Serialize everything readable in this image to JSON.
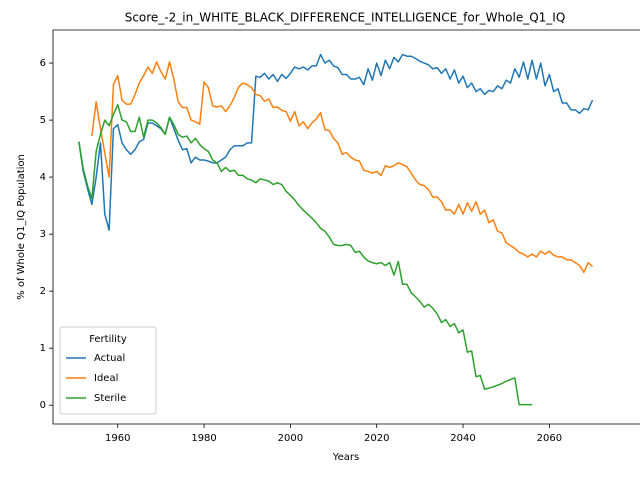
{
  "chart_data": {
    "type": "line",
    "title": "Score_-2_in_WHITE_BLACK_DIFFERENCE_INTELLIGENCE_for_Whole_Q1_IQ",
    "xlabel": "Years",
    "ylabel": "% of Whole Q1_IQ Population",
    "legend_title": "Fertility",
    "legend": "lower left",
    "xlim": [
      1945,
      2081
    ],
    "ylim": [
      -0.33,
      6.58
    ],
    "xticks": [
      1960,
      1980,
      2000,
      2020,
      2040,
      2060
    ],
    "yticks": [
      0,
      1,
      2,
      3,
      4,
      5,
      6
    ],
    "x": [
      1951,
      1952,
      1953,
      1954,
      1955,
      1956,
      1957,
      1958,
      1959,
      1960,
      1961,
      1962,
      1963,
      1964,
      1965,
      1966,
      1967,
      1968,
      1969,
      1970,
      1971,
      1972,
      1973,
      1974,
      1975,
      1976,
      1977,
      1978,
      1979,
      1980,
      1981,
      1982,
      1983,
      1984,
      1985,
      1986,
      1987,
      1988,
      1989,
      1990,
      1991,
      1992,
      1993,
      1994,
      1995,
      1996,
      1997,
      1998,
      1999,
      2000,
      2001,
      2002,
      2003,
      2004,
      2005,
      2006,
      2007,
      2008,
      2009,
      2010,
      2011,
      2012,
      2013,
      2014,
      2015,
      2016,
      2017,
      2018,
      2019,
      2020,
      2021,
      2022,
      2023,
      2024,
      2025,
      2026,
      2027,
      2028,
      2029,
      2030,
      2031,
      2032,
      2033,
      2034,
      2035,
      2036,
      2037,
      2038,
      2039,
      2040,
      2041,
      2042,
      2043,
      2044,
      2045,
      2046,
      2047,
      2048,
      2049,
      2050,
      2051,
      2052,
      2053,
      2054,
      2055,
      2056,
      2057,
      2058,
      2059,
      2060,
      2061,
      2062,
      2063,
      2064,
      2065,
      2066,
      2067,
      2068,
      2069,
      2070
    ],
    "series": [
      {
        "name": "Actual",
        "color": "#1f77b4",
        "values": [
          4.62,
          4.1,
          3.8,
          3.52,
          4.0,
          4.6,
          3.35,
          3.07,
          4.85,
          4.92,
          4.6,
          4.48,
          4.4,
          4.48,
          4.62,
          4.66,
          4.95,
          4.95,
          4.9,
          4.85,
          4.75,
          5.05,
          4.85,
          4.65,
          4.48,
          4.5,
          4.25,
          4.35,
          4.3,
          4.3,
          4.28,
          4.25,
          4.25,
          4.3,
          4.35,
          4.48,
          4.55,
          4.55,
          4.55,
          4.6,
          4.6,
          5.77,
          5.75,
          5.82,
          5.72,
          5.8,
          5.68,
          5.8,
          5.73,
          5.82,
          5.93,
          5.9,
          5.93,
          5.88,
          5.95,
          5.95,
          6.15,
          6.0,
          6.05,
          5.95,
          5.92,
          5.8,
          5.8,
          5.72,
          5.72,
          5.75,
          5.62,
          5.9,
          5.7,
          6.0,
          5.78,
          6.05,
          5.9,
          6.1,
          6.02,
          6.15,
          6.12,
          6.12,
          6.08,
          6.03,
          6.0,
          5.97,
          5.9,
          5.92,
          5.82,
          5.9,
          5.72,
          5.88,
          5.65,
          5.77,
          5.57,
          5.65,
          5.5,
          5.55,
          5.45,
          5.52,
          5.5,
          5.6,
          5.55,
          5.7,
          5.65,
          5.9,
          5.75,
          6.02,
          5.72,
          6.05,
          5.72,
          6.0,
          5.6,
          5.8,
          5.5,
          5.55,
          5.3,
          5.3,
          5.18,
          5.18,
          5.12,
          5.2,
          5.18,
          5.35
        ]
      },
      {
        "name": "Ideal",
        "color": "#ff7f0e",
        "values": [
          null,
          null,
          null,
          4.72,
          5.32,
          4.85,
          4.42,
          4.0,
          5.62,
          5.78,
          5.35,
          5.28,
          5.28,
          5.45,
          5.65,
          5.78,
          5.93,
          5.82,
          6.02,
          5.85,
          5.72,
          6.02,
          5.72,
          5.32,
          5.22,
          5.22,
          5.0,
          4.97,
          4.93,
          5.67,
          5.57,
          5.25,
          5.23,
          5.25,
          5.15,
          5.25,
          5.4,
          5.58,
          5.65,
          5.62,
          5.57,
          5.45,
          5.43,
          5.33,
          5.37,
          5.22,
          5.23,
          5.17,
          5.15,
          4.98,
          5.15,
          4.9,
          4.97,
          4.85,
          4.95,
          5.02,
          5.13,
          4.83,
          4.82,
          4.68,
          4.6,
          4.4,
          4.43,
          4.35,
          4.3,
          4.28,
          4.12,
          4.1,
          4.07,
          4.1,
          4.03,
          4.2,
          4.17,
          4.2,
          4.25,
          4.22,
          4.18,
          4.07,
          3.95,
          3.87,
          3.85,
          3.78,
          3.65,
          3.65,
          3.57,
          3.42,
          3.43,
          3.35,
          3.52,
          3.35,
          3.55,
          3.4,
          3.57,
          3.35,
          3.42,
          3.2,
          3.25,
          3.05,
          3.02,
          2.85,
          2.8,
          2.75,
          2.68,
          2.65,
          2.6,
          2.65,
          2.6,
          2.7,
          2.65,
          2.7,
          2.63,
          2.6,
          2.6,
          2.55,
          2.55,
          2.5,
          2.45,
          2.33,
          2.5,
          2.43
        ]
      },
      {
        "name": "Sterile",
        "color": "#2ca02c",
        "values": [
          4.62,
          4.15,
          3.85,
          3.62,
          4.45,
          4.75,
          5.0,
          4.9,
          5.1,
          5.27,
          5.0,
          4.97,
          4.8,
          4.8,
          5.05,
          4.7,
          5.0,
          5.0,
          4.95,
          4.87,
          4.75,
          5.05,
          4.92,
          4.75,
          4.7,
          4.72,
          4.6,
          4.68,
          4.57,
          4.5,
          4.45,
          4.3,
          4.25,
          4.1,
          4.17,
          4.1,
          4.12,
          4.03,
          4.03,
          3.97,
          3.95,
          3.9,
          3.97,
          3.95,
          3.93,
          3.87,
          3.9,
          3.87,
          3.75,
          3.68,
          3.6,
          3.5,
          3.42,
          3.35,
          3.28,
          3.2,
          3.1,
          3.05,
          2.95,
          2.82,
          2.8,
          2.8,
          2.82,
          2.8,
          2.68,
          2.7,
          2.6,
          2.53,
          2.5,
          2.48,
          2.5,
          2.45,
          2.5,
          2.28,
          2.52,
          2.12,
          2.12,
          1.97,
          1.9,
          1.82,
          1.72,
          1.77,
          1.7,
          1.6,
          1.45,
          1.5,
          1.38,
          1.43,
          1.27,
          1.32,
          0.93,
          0.95,
          0.5,
          0.52,
          0.28,
          0.3,
          0.32,
          0.35,
          0.38,
          0.42,
          0.45,
          0.48,
          0.01,
          0.01,
          0.01,
          0.01,
          null,
          null,
          null,
          null,
          null,
          null,
          null,
          null,
          null,
          null,
          null,
          null,
          null,
          null
        ]
      }
    ]
  }
}
